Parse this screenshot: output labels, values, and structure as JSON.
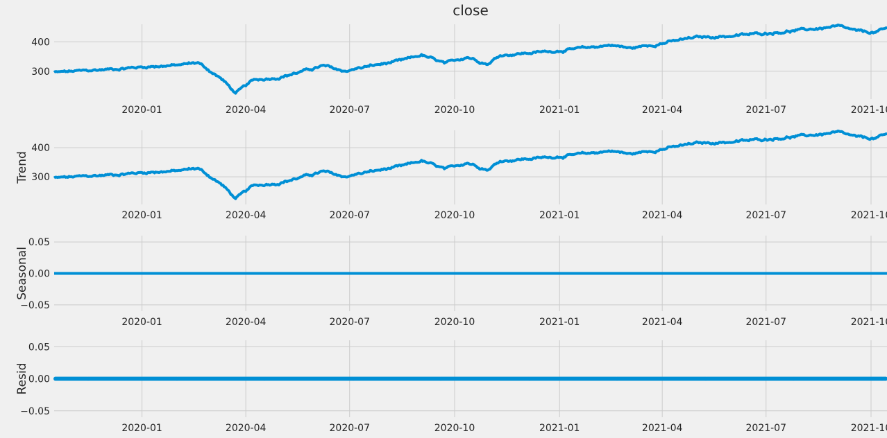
{
  "chart_data": {
    "type": "line",
    "title": "close",
    "x_range": [
      "2019-10-16",
      "2021-10-15"
    ],
    "x_ticks": [
      "2020-01",
      "2020-04",
      "2020-07",
      "2020-10",
      "2021-01",
      "2021-04",
      "2021-07",
      "2021-10"
    ],
    "x_tick_dates": [
      "2020-01-01",
      "2020-04-01",
      "2020-07-01",
      "2020-10-01",
      "2021-01-01",
      "2021-04-01",
      "2021-07-01",
      "2021-10-01"
    ],
    "line_color": "#008fd5",
    "panels": [
      {
        "name": "close",
        "title": "close",
        "ylabel": "",
        "ylim": [
          205,
          460
        ],
        "yticks": [
          300,
          400
        ],
        "ytick_labels": [
          "300",
          "400"
        ],
        "series_ref": "observed"
      },
      {
        "name": "trend",
        "title": "",
        "ylabel": "Trend",
        "ylim": [
          205,
          460
        ],
        "yticks": [
          300,
          400
        ],
        "ytick_labels": [
          "300",
          "400"
        ],
        "series_ref": "observed"
      },
      {
        "name": "seasonal",
        "title": "",
        "ylabel": "Seasonal",
        "ylim": [
          -0.06,
          0.06
        ],
        "yticks": [
          0.05,
          0.0,
          -0.05
        ],
        "ytick_labels": [
          "0.05",
          "0.00",
          "−0.05"
        ],
        "series_ref": "zero",
        "style": "line"
      },
      {
        "name": "resid",
        "title": "",
        "ylabel": "Resid",
        "ylim": [
          -0.06,
          0.06
        ],
        "yticks": [
          0.05,
          0.0,
          -0.05
        ],
        "ytick_labels": [
          "0.05",
          "0.00",
          "−0.05"
        ],
        "series_ref": "zero",
        "style": "dots"
      }
    ],
    "observed_anchors": [
      [
        "2019-10-16",
        296
      ],
      [
        "2019-11-15",
        302
      ],
      [
        "2019-12-15",
        310
      ],
      [
        "2020-01-15",
        318
      ],
      [
        "2020-02-01",
        320
      ],
      [
        "2020-02-19",
        330
      ],
      [
        "2020-03-01",
        300
      ],
      [
        "2020-03-12",
        270
      ],
      [
        "2020-03-23",
        225
      ],
      [
        "2020-04-08",
        270
      ],
      [
        "2020-05-01",
        280
      ],
      [
        "2020-06-08",
        318
      ],
      [
        "2020-06-26",
        300
      ],
      [
        "2020-07-15",
        315
      ],
      [
        "2020-08-15",
        335
      ],
      [
        "2020-09-02",
        355
      ],
      [
        "2020-09-23",
        325
      ],
      [
        "2020-10-12",
        350
      ],
      [
        "2020-10-30",
        325
      ],
      [
        "2020-11-10",
        355
      ],
      [
        "2020-12-15",
        365
      ],
      [
        "2021-01-15",
        375
      ],
      [
        "2021-02-15",
        390
      ],
      [
        "2021-03-04",
        378
      ],
      [
        "2021-03-31",
        395
      ],
      [
        "2021-04-30",
        415
      ],
      [
        "2021-06-01",
        420
      ],
      [
        "2021-07-01",
        430
      ],
      [
        "2021-08-01",
        440
      ],
      [
        "2021-09-02",
        452
      ],
      [
        "2021-09-20",
        435
      ],
      [
        "2021-10-04",
        432
      ],
      [
        "2021-10-15",
        445
      ]
    ],
    "seasonal_value": 0.0,
    "resid_value": 0.0
  }
}
